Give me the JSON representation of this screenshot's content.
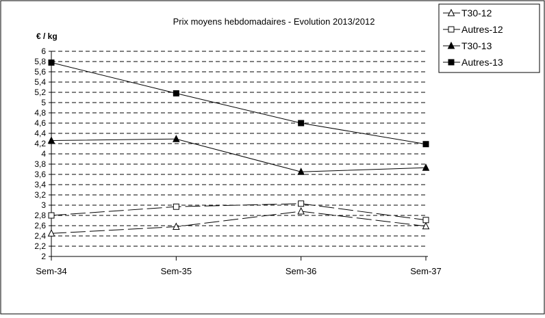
{
  "chart_data": {
    "type": "line",
    "title": "Prix moyens hebdomadaires - Evolution  2013/2012",
    "ylabel": "€ / kg",
    "xlabel": "",
    "categories": [
      "Sem-34",
      "Sem-35",
      "Sem-36",
      "Sem-37"
    ],
    "ylim": [
      2,
      6
    ],
    "ytick_step": 0.2,
    "grid": true,
    "legend_position": "top-right",
    "series": [
      {
        "name": "T30-12",
        "marker": "triangle-open",
        "line": "dashed",
        "values": [
          2.45,
          2.58,
          2.88,
          2.59
        ]
      },
      {
        "name": "Autres-12",
        "marker": "square-open",
        "line": "dashed",
        "values": [
          2.8,
          2.97,
          3.03,
          2.71
        ]
      },
      {
        "name": "T30-13",
        "marker": "triangle-filled",
        "line": "solid",
        "values": [
          4.26,
          4.29,
          3.65,
          3.73
        ]
      },
      {
        "name": "Autres-13",
        "marker": "square-filled",
        "line": "solid",
        "values": [
          5.78,
          5.18,
          4.6,
          4.19
        ]
      }
    ]
  }
}
